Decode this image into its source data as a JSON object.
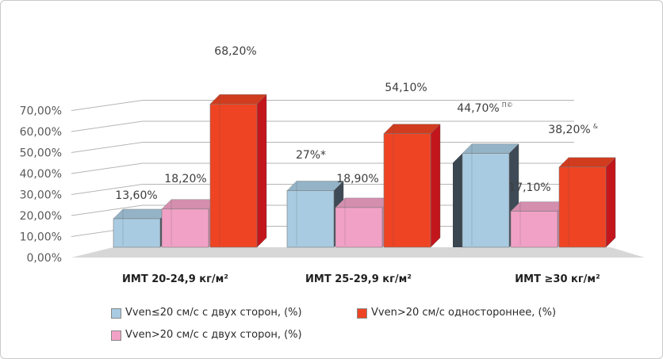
{
  "chart_data": {
    "type": "bar",
    "title": "",
    "xlabel": "",
    "ylabel": "",
    "ylim": [
      0,
      70
    ],
    "yticks": [
      "0,00%",
      "10,00%",
      "20,00%",
      "30,00%",
      "40,00%",
      "50,00%",
      "60,00%",
      "70,00%"
    ],
    "grid": true,
    "legend_position": "bottom",
    "categories": [
      "ИМТ 20-24,9 кг/м²",
      "ИМТ 25-29,9 кг/м²",
      "ИМТ ≥30 кг/м²"
    ],
    "series": [
      {
        "name": "Vven≤20 см/с с двух сторон, (%)",
        "values": [
          13.6,
          27.0,
          44.7
        ],
        "labels": [
          "13,60%",
          "27%*",
          "44,70%"
        ],
        "label_marks": [
          "",
          "",
          "П©"
        ],
        "color": "#a8cbe1"
      },
      {
        "name": "Vven>20 см/с с двух сторон, (%)",
        "values": [
          18.2,
          18.9,
          17.1
        ],
        "labels": [
          "18,20%",
          "18,90%",
          "17,10%"
        ],
        "label_marks": [
          "",
          "",
          ""
        ],
        "color": "#f1a1c6"
      },
      {
        "name": "Vven>20 см/с одностороннее, (%)",
        "values": [
          68.2,
          54.1,
          38.2
        ],
        "labels": [
          "68,20%",
          "54,10%",
          "38,20%"
        ],
        "label_marks": [
          "",
          "",
          "&"
        ],
        "color": "#ee4423"
      }
    ]
  }
}
